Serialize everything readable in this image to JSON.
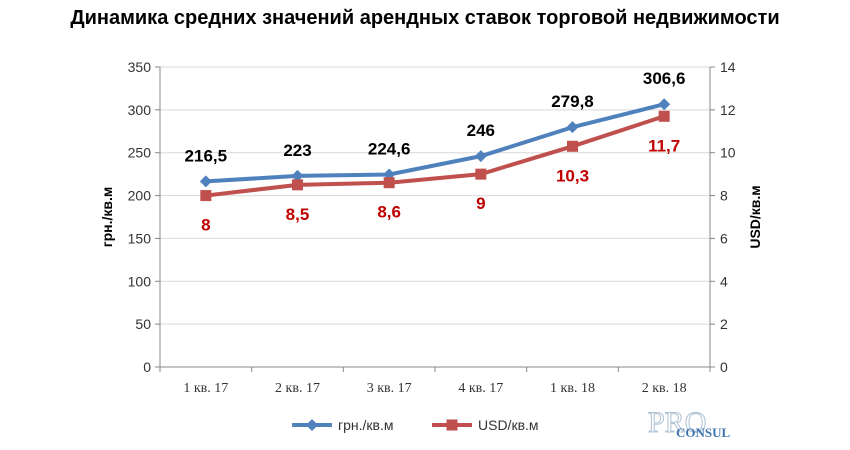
{
  "chart_data": {
    "type": "line",
    "title": "Динамика средних значений арендных ставок торговой недвижимости",
    "categories": [
      "1 кв. 17",
      "2 кв. 17",
      "3 кв. 17",
      "4 кв. 17",
      "1 кв. 18",
      "2 кв. 18"
    ],
    "series": [
      {
        "name": "грн./кв.м",
        "axis": "left",
        "color": "#4f81bd",
        "marker": "diamond",
        "values": [
          216.5,
          223,
          224.6,
          246,
          279.8,
          306.6
        ],
        "labels": [
          "216,5",
          "223",
          "224,6",
          "246",
          "279,8",
          "306,6"
        ],
        "label_color": "#000000"
      },
      {
        "name": "USD/кв.м",
        "axis": "right",
        "color": "#c0504d",
        "marker": "square",
        "values": [
          8,
          8.5,
          8.6,
          9,
          10.3,
          11.7
        ],
        "labels": [
          "8",
          "8,5",
          "8,6",
          "9",
          "10,3",
          "11,7"
        ],
        "label_color": "#c00000"
      }
    ],
    "ylabel": "грн./кв.м",
    "y2label": "USD/кв.м",
    "ylim": [
      0,
      350
    ],
    "y2lim": [
      0,
      14
    ],
    "yticks": [
      "0",
      "50",
      "100",
      "150",
      "200",
      "250",
      "300",
      "350"
    ],
    "y2ticks": [
      "0",
      "2",
      "4",
      "6",
      "8",
      "10",
      "12",
      "14"
    ],
    "grid": "horizontal",
    "legend": "bottom"
  },
  "watermark": "PRO Consul"
}
